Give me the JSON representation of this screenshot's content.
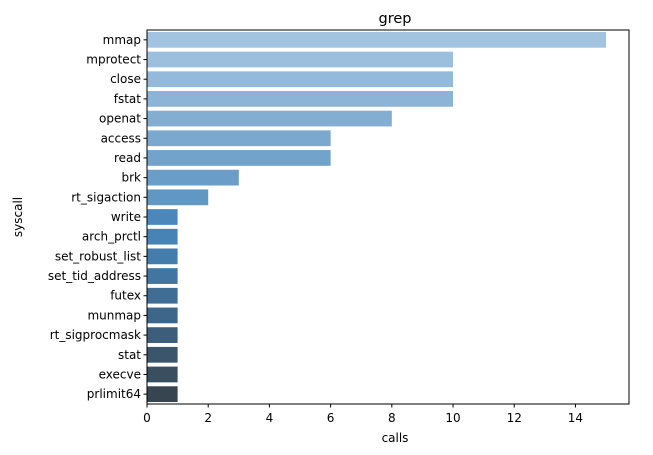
{
  "chart_data": {
    "type": "bar",
    "orientation": "horizontal",
    "title": "grep",
    "xlabel": "calls",
    "ylabel": "syscall",
    "xlim": [
      0,
      15.75
    ],
    "xticks": [
      0,
      2,
      4,
      6,
      8,
      10,
      12,
      14
    ],
    "grid": false,
    "legend": "none",
    "categories": [
      "mmap",
      "mprotect",
      "close",
      "fstat",
      "openat",
      "access",
      "read",
      "brk",
      "rt_sigaction",
      "write",
      "arch_prctl",
      "set_robust_list",
      "set_tid_address",
      "futex",
      "munmap",
      "rt_sigprocmask",
      "stat",
      "execve",
      "prlimit64"
    ],
    "values": [
      15,
      10,
      10,
      10,
      8,
      6,
      6,
      3,
      2,
      1,
      1,
      1,
      1,
      1,
      1,
      1,
      1,
      1,
      1
    ],
    "colors": [
      "#a3c4e0",
      "#9bbfdd",
      "#93bada",
      "#8bb4d6",
      "#83aed2",
      "#7ba8cf",
      "#72a3cb",
      "#6a9dc7",
      "#6097c3",
      "#4b87bb",
      "#4783b5",
      "#447cab",
      "#4275a0",
      "#406d94",
      "#3e6688",
      "#3d5e7b",
      "#3b566c",
      "#394e5e",
      "#36454f"
    ]
  }
}
